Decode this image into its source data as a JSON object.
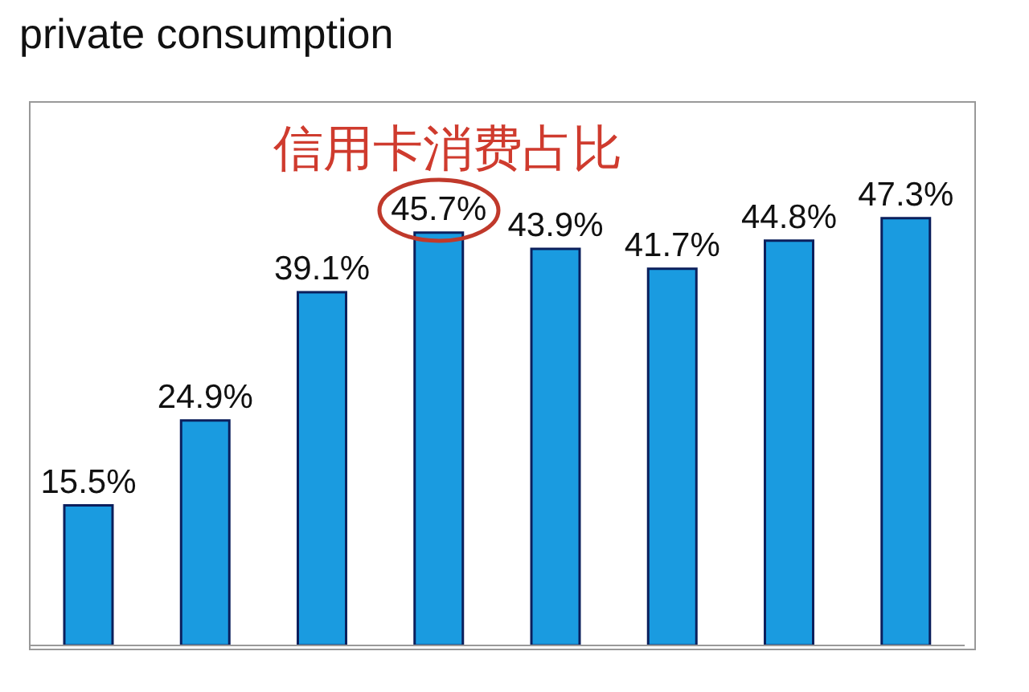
{
  "chart_data": {
    "type": "bar",
    "title": "private consumption",
    "annotations": [
      "信用卡消费占比"
    ],
    "categories": [
      null,
      null,
      null,
      null,
      null,
      null,
      null,
      null
    ],
    "values": [
      15.5,
      24.9,
      39.1,
      45.7,
      43.9,
      41.7,
      44.8,
      47.3
    ],
    "value_labels": [
      "15.5%",
      "24.9%",
      "39.1%",
      "45.7%",
      "43.9%",
      "41.7%",
      "44.8%",
      "47.3%"
    ],
    "color": "#1a9be0",
    "tick_labels": false,
    "grid": false,
    "legend": false
  }
}
